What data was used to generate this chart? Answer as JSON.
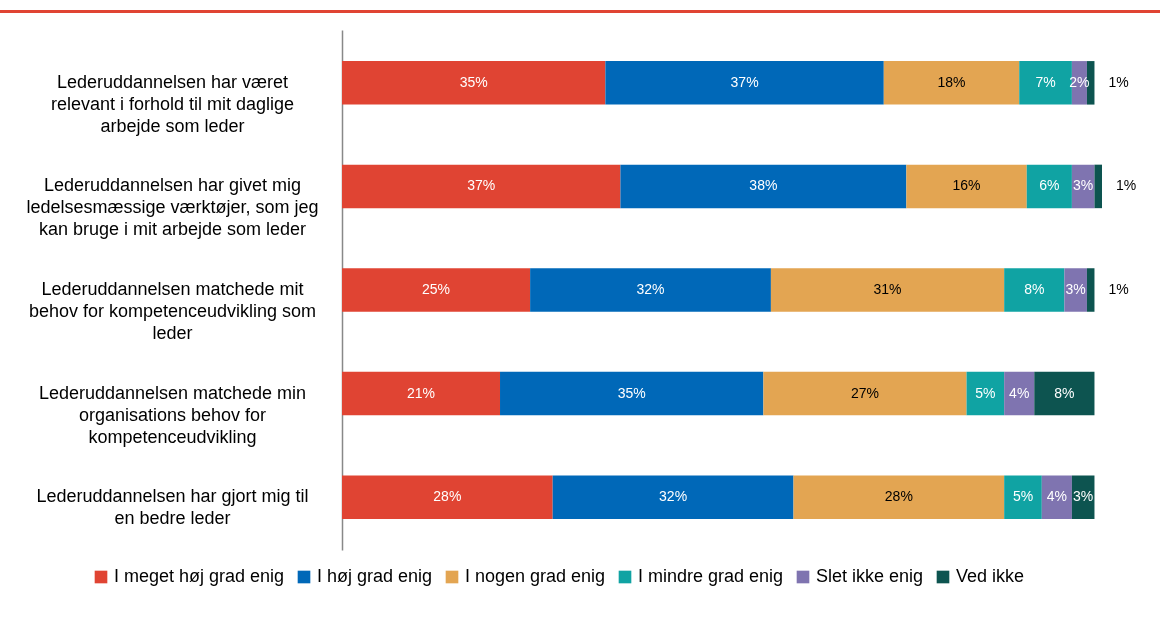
{
  "chart_data": {
    "type": "bar",
    "orientation": "horizontal",
    "stacked": true,
    "legend": "bottom",
    "categories": [
      "Lederuddannelsen har været relevant i forhold til mit daglige arbejde som leder",
      "Lederuddannelsen har givet mig ledelsesmæssige værktøjer, som jeg kan bruge i mit arbejde som leder",
      "Lederuddannelsen matchede mit behov for kompetenceudvikling som leder",
      "Lederuddannelsen matchede min organisations behov for kompetenceudvikling",
      "Lederuddannelsen har gjort mig til en bedre leder"
    ],
    "series": [
      {
        "name": "I meget høj grad enig",
        "color": "#e04433",
        "values": [
          35,
          37,
          25,
          21,
          28
        ],
        "value_labels": [
          "35%",
          "37%",
          "25%",
          "21%",
          "28%"
        ]
      },
      {
        "name": "I høj grad enig",
        "color": "#0068b8",
        "values": [
          37,
          38,
          32,
          35,
          32
        ],
        "value_labels": [
          "37%",
          "38%",
          "32%",
          "35%",
          "32%"
        ]
      },
      {
        "name": "I nogen grad enig",
        "color": "#e3a552",
        "values": [
          18,
          16,
          31,
          27,
          28
        ],
        "value_labels": [
          "18%",
          "16%",
          "31%",
          "27%",
          "28%"
        ]
      },
      {
        "name": "I mindre grad enig",
        "color": "#10a3a3",
        "values": [
          7,
          6,
          8,
          5,
          5
        ],
        "value_labels": [
          "7%",
          "6%",
          "8%",
          "5%",
          "5%"
        ]
      },
      {
        "name": "Slet ikke enig",
        "color": "#7f74b0",
        "values": [
          2,
          3,
          3,
          4,
          4
        ],
        "value_labels": [
          "2%",
          "3%",
          "3%",
          "4%",
          "4%"
        ]
      },
      {
        "name": "Ved ikke",
        "color": "#0d5450",
        "values": [
          1,
          1,
          1,
          8,
          3
        ],
        "value_labels": [
          "1%",
          "1%",
          "1%",
          "8%",
          "3%"
        ]
      }
    ]
  }
}
